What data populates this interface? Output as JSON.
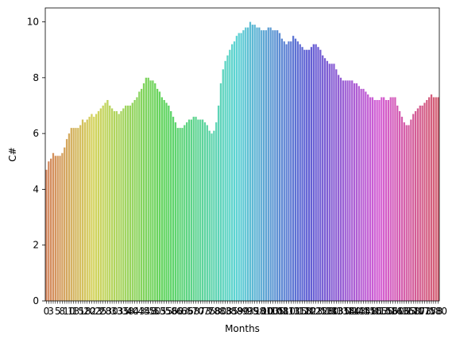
{
  "chart_data": {
    "type": "bar",
    "xlabel": "Months",
    "ylabel": "C#",
    "ylim": [
      0,
      10.5
    ],
    "yticks": [
      "0",
      "2",
      "4",
      "6",
      "8",
      "10"
    ],
    "grid": false,
    "legend": "none",
    "x_tick_labels": [
      "0",
      "3",
      "5",
      "8",
      "10",
      "13",
      "15",
      "18",
      "20",
      "23",
      "25",
      "28",
      "30",
      "33",
      "35",
      "38",
      "40",
      "43",
      "45",
      "48",
      "50",
      "53",
      "55",
      "58",
      "60",
      "63",
      "65",
      "68",
      "70",
      "73",
      "75",
      "78",
      "80",
      "83",
      "85",
      "88",
      "90",
      "93",
      "95",
      "98",
      "100",
      "103",
      "105",
      "108",
      "110",
      "113",
      "115",
      "118",
      "120",
      "123",
      "125",
      "128",
      "130",
      "133",
      "135",
      "138",
      "140",
      "143",
      "145",
      "148",
      "150",
      "153",
      "155",
      "158",
      "160",
      "163",
      "165",
      "168",
      "170",
      "173",
      "175",
      "178",
      "180"
    ],
    "values": [
      4.7,
      5.0,
      5.1,
      5.3,
      5.2,
      5.2,
      5.2,
      5.3,
      5.5,
      5.8,
      6.0,
      6.2,
      6.2,
      6.2,
      6.2,
      6.3,
      6.5,
      6.4,
      6.5,
      6.6,
      6.7,
      6.6,
      6.7,
      6.8,
      6.9,
      7.0,
      7.1,
      7.2,
      7.0,
      6.9,
      6.8,
      6.8,
      6.7,
      6.8,
      6.9,
      7.0,
      7.0,
      7.0,
      7.1,
      7.2,
      7.3,
      7.5,
      7.6,
      7.8,
      8.0,
      8.0,
      7.9,
      7.9,
      7.8,
      7.6,
      7.5,
      7.3,
      7.2,
      7.1,
      7.0,
      6.8,
      6.6,
      6.4,
      6.2,
      6.2,
      6.2,
      6.3,
      6.4,
      6.5,
      6.5,
      6.6,
      6.6,
      6.5,
      6.5,
      6.5,
      6.4,
      6.3,
      6.1,
      6.0,
      6.1,
      6.4,
      7.0,
      7.8,
      8.3,
      8.6,
      8.8,
      9.0,
      9.2,
      9.3,
      9.5,
      9.6,
      9.6,
      9.7,
      9.8,
      9.8,
      10.0,
      9.9,
      9.9,
      9.8,
      9.8,
      9.7,
      9.7,
      9.7,
      9.8,
      9.8,
      9.7,
      9.7,
      9.7,
      9.6,
      9.4,
      9.3,
      9.2,
      9.3,
      9.3,
      9.5,
      9.4,
      9.3,
      9.2,
      9.1,
      9.0,
      9.0,
      9.0,
      9.1,
      9.2,
      9.2,
      9.1,
      9.0,
      8.8,
      8.7,
      8.6,
      8.5,
      8.5,
      8.5,
      8.3,
      8.1,
      8.0,
      7.9,
      7.9,
      7.9,
      7.9,
      7.9,
      7.8,
      7.8,
      7.7,
      7.6,
      7.6,
      7.5,
      7.4,
      7.3,
      7.3,
      7.2,
      7.2,
      7.2,
      7.3,
      7.3,
      7.2,
      7.2,
      7.3,
      7.3,
      7.3,
      7.0,
      6.8,
      6.6,
      6.4,
      6.3,
      6.3,
      6.5,
      6.7,
      6.8,
      6.9,
      7.0,
      7.0,
      7.1,
      7.2,
      7.3,
      7.4,
      7.3,
      7.3,
      7.3
    ]
  }
}
